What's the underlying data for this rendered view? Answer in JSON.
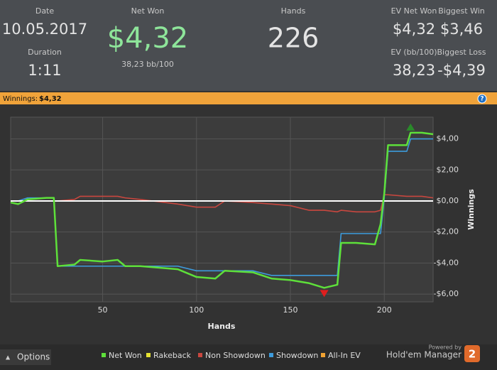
{
  "header": {
    "date_label": "Date",
    "date": "10.05.2017",
    "duration_label": "Duration",
    "duration": "1:11",
    "net_won_label": "Net Won",
    "net_won": "$4,32",
    "net_won_bb": "38,23 bb/100",
    "hands_label": "Hands",
    "hands": "226",
    "ev_net_won_label": "EV Net Won",
    "ev_net_won": "$4,32",
    "biggest_win_label": "Biggest Win",
    "biggest_win": "$3,46",
    "ev_bb_label": "EV (bb/100)",
    "ev_bb": "38,23",
    "biggest_loss_label": "Biggest Loss",
    "biggest_loss": "-$4,39"
  },
  "banner": {
    "label": "Winnings:",
    "value": "$4,32",
    "help": "?"
  },
  "chart_data": {
    "type": "line",
    "xlabel": "Hands",
    "ylabel": "Winnings",
    "x": [
      1,
      5,
      10,
      20,
      24,
      26,
      35,
      38,
      50,
      58,
      62,
      70,
      90,
      100,
      110,
      115,
      130,
      140,
      150,
      160,
      168,
      175,
      177,
      185,
      195,
      198,
      200,
      202,
      212,
      214,
      220,
      226
    ],
    "series": [
      {
        "name": "Net Won",
        "color": "#5ee03a",
        "values": [
          -0.1,
          -0.2,
          0.1,
          0.2,
          0.2,
          -4.2,
          -4.1,
          -3.8,
          -3.9,
          -3.8,
          -4.2,
          -4.2,
          -4.4,
          -4.9,
          -5.0,
          -4.5,
          -4.6,
          -5.0,
          -5.1,
          -5.3,
          -5.6,
          -5.4,
          -2.7,
          -2.7,
          -2.8,
          -1.5,
          0.5,
          3.6,
          3.6,
          4.4,
          4.4,
          4.3
        ]
      },
      {
        "name": "Rakeback",
        "color": "#e6e232",
        "values": [
          0,
          0,
          0,
          0,
          0,
          0,
          0,
          0,
          0,
          0,
          0,
          0,
          0,
          0,
          0,
          0,
          0,
          0,
          0,
          0,
          0,
          0,
          0,
          0,
          0,
          0,
          0,
          0,
          0,
          0,
          0,
          0
        ]
      },
      {
        "name": "Non Showdown",
        "color": "#c9473f",
        "values": [
          0,
          0,
          0,
          0,
          0,
          0,
          0.1,
          0.3,
          0.3,
          0.3,
          0.2,
          0.1,
          -0.2,
          -0.4,
          -0.4,
          0,
          -0.1,
          -0.2,
          -0.3,
          -0.6,
          -0.6,
          -0.7,
          -0.6,
          -0.7,
          -0.7,
          -0.6,
          0.4,
          0.4,
          0.3,
          0.3,
          0.3,
          0.2
        ]
      },
      {
        "name": "Showdown",
        "color": "#3d9bdc",
        "values": [
          0,
          0,
          0.2,
          0.2,
          0.2,
          -4.2,
          -4.2,
          -4.2,
          -4.2,
          -4.2,
          -4.2,
          -4.2,
          -4.2,
          -4.5,
          -4.5,
          -4.5,
          -4.5,
          -4.8,
          -4.8,
          -4.8,
          -4.8,
          -4.8,
          -2.1,
          -2.1,
          -2.1,
          -2.1,
          0.2,
          3.2,
          3.2,
          4.0,
          4.0,
          4.0
        ]
      },
      {
        "name": "All-In EV",
        "color": "#f0a232",
        "values": [
          -0.1,
          -0.2,
          0.1,
          0.2,
          0.2,
          -4.2,
          -4.1,
          -3.8,
          -3.9,
          -3.8,
          -4.2,
          -4.2,
          -4.4,
          -4.9,
          -5.0,
          -4.5,
          -4.6,
          -5.0,
          -5.1,
          -5.3,
          -5.6,
          -5.4,
          -2.7,
          -2.7,
          -2.8,
          -1.5,
          0.5,
          3.6,
          3.6,
          4.4,
          4.4,
          4.3
        ]
      }
    ],
    "xlim": [
      1,
      226
    ],
    "xticks": [
      50,
      100,
      150,
      200
    ],
    "ylim": [
      -6.5,
      5.4
    ],
    "yticks": [
      {
        "value": 4,
        "label": "$4,00"
      },
      {
        "value": 2,
        "label": "$2,00"
      },
      {
        "value": 0,
        "label": "$0,00"
      },
      {
        "value": -2,
        "label": "-$2,00"
      },
      {
        "value": -4,
        "label": "-$4,00"
      },
      {
        "value": -6,
        "label": "-$6,00"
      }
    ],
    "grid": true
  },
  "footer": {
    "options": "Options",
    "powered_by": "Powered by",
    "brand": "Hold'em Manager",
    "brand_version": "2"
  }
}
